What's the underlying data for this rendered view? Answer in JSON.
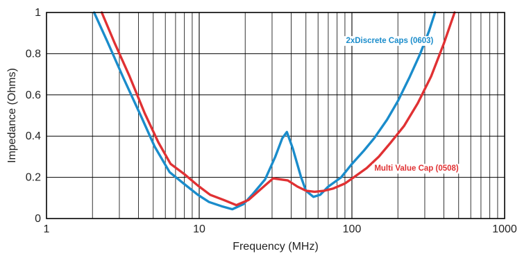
{
  "colors": {
    "background": "#ffffff",
    "grid": "#000000",
    "text": "#222222",
    "series_blue": "#1a8ccb",
    "series_red": "#e03133"
  },
  "chart_data": {
    "type": "line",
    "xlabel": "Frequency  (MHz)",
    "ylabel": "Impedance  (Ohms)",
    "x_scale": "log",
    "xlim": [
      1,
      1000
    ],
    "ylim": [
      0,
      1
    ],
    "x_ticks": [
      1,
      10,
      100,
      1000
    ],
    "x_tick_labels": [
      "1",
      "10",
      "100",
      "1000"
    ],
    "y_ticks": [
      0,
      0.2,
      0.4,
      0.6,
      0.8,
      1
    ],
    "y_tick_labels": [
      "0",
      "0.2",
      "0.4",
      "0.6",
      "0.8",
      "1"
    ],
    "grid": true,
    "series": [
      {
        "name": "2xDiscrete Caps (0603)",
        "color": "#1a8ccb",
        "x": [
          2.05,
          2.5,
          3.2,
          4.2,
          5.1,
          6.4,
          7.9,
          9.8,
          11.6,
          14.0,
          16.5,
          19.5,
          22.5,
          27.0,
          31.5,
          35.0,
          37.5,
          41.0,
          46.5,
          50.0,
          56.0,
          62.0,
          70.0,
          85.0,
          100.0,
          120.0,
          140.0,
          170.0,
          200.0,
          240.0,
          280.0,
          320.0,
          350.0
        ],
        "y": [
          1.0,
          0.86,
          0.68,
          0.49,
          0.35,
          0.225,
          0.17,
          0.115,
          0.08,
          0.06,
          0.045,
          0.07,
          0.12,
          0.19,
          0.3,
          0.39,
          0.42,
          0.34,
          0.2,
          0.135,
          0.105,
          0.115,
          0.155,
          0.2,
          0.265,
          0.33,
          0.39,
          0.48,
          0.57,
          0.69,
          0.8,
          0.91,
          1.0
        ]
      },
      {
        "name": "Multi Value Cap (0508)",
        "color": "#e03133",
        "x": [
          2.3,
          2.8,
          3.5,
          4.4,
          5.4,
          6.5,
          8.0,
          9.8,
          11.8,
          14.5,
          17.5,
          21.0,
          26.0,
          30.5,
          34.0,
          38.0,
          44.0,
          50.0,
          57.0,
          66.0,
          75.0,
          90.0,
          105.0,
          125.0,
          150.0,
          180.0,
          220.0,
          270.0,
          330.0,
          400.0,
          470.0
        ],
        "y": [
          1.0,
          0.85,
          0.69,
          0.51,
          0.37,
          0.265,
          0.215,
          0.16,
          0.115,
          0.09,
          0.065,
          0.09,
          0.15,
          0.195,
          0.19,
          0.185,
          0.155,
          0.135,
          0.13,
          0.135,
          0.145,
          0.17,
          0.205,
          0.245,
          0.3,
          0.37,
          0.45,
          0.56,
          0.69,
          0.85,
          1.0
        ]
      }
    ]
  }
}
